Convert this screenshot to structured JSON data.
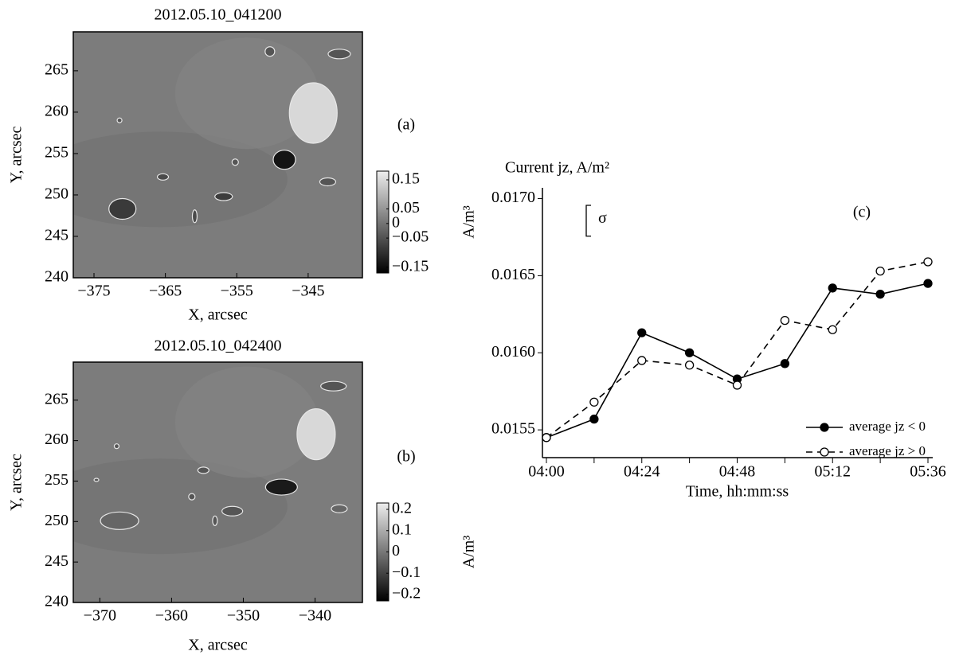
{
  "chart_data": [
    {
      "type": "image",
      "title": "2012.05.10_041200",
      "panel_label": "(a)",
      "x_label": "X, arcsec",
      "y_label": "Y, arcsec",
      "xlim": [
        -377.9,
        -337.4
      ],
      "xticks": [
        {
          "value": -375,
          "label": "−375"
        },
        {
          "value": -365,
          "label": "−365"
        },
        {
          "value": -355,
          "label": "−355"
        },
        {
          "value": -345,
          "label": "−345"
        }
      ],
      "ylim": [
        240,
        269.7
      ],
      "yticks": [
        240,
        245,
        250,
        255,
        260,
        265
      ],
      "colorbar_label": "A/m³",
      "clim": [
        -0.17,
        0.18
      ],
      "cticks": [
        0.15,
        0.05,
        0,
        {
          "value": -0.05,
          "label": "−0.05"
        },
        {
          "value": -0.15,
          "label": "−0.15"
        }
      ]
    },
    {
      "type": "image",
      "title": "2012.05.10_042400",
      "panel_label": "(b)",
      "x_label": "X, arcsec",
      "y_label": "Y, arcsec",
      "xlim": [
        -373.7,
        -333.4
      ],
      "xticks": [
        {
          "value": -370,
          "label": "−370"
        },
        {
          "value": -360,
          "label": "−360"
        },
        {
          "value": -350,
          "label": "−350"
        },
        {
          "value": -340,
          "label": "−340"
        }
      ],
      "ylim": [
        240,
        269.7
      ],
      "yticks": [
        240,
        245,
        250,
        255,
        260,
        265
      ],
      "colorbar_label": "A/m³",
      "clim": [
        -0.23,
        0.23
      ],
      "cticks": [
        0.2,
        0.1,
        0,
        {
          "value": -0.1,
          "label": "−0.1"
        },
        {
          "value": -0.2,
          "label": "−0.2"
        }
      ]
    },
    {
      "type": "line",
      "panel_label": "(c)",
      "y_label": "Current jz, A/m²",
      "x_label": "Time, hh:mm:ss",
      "categories": [
        "04:00",
        null,
        "04:24",
        null,
        "04:48",
        null,
        "05:12",
        null,
        "05:36"
      ],
      "ylim": [
        0.01532,
        0.01707
      ],
      "yticks": [
        0.0155,
        0.016,
        0.0165,
        0.017
      ],
      "yticks_labels": [
        "0.0155",
        "0.0160",
        "0.0165",
        "0.0170"
      ],
      "sigma_label": "σ",
      "sigma": 0.0002,
      "legend": "lower right",
      "series": [
        {
          "name": "average jz < 0",
          "color": "#000000",
          "line_style": "solid",
          "marker": "filled",
          "values": [
            0.01545,
            0.01557,
            0.01613,
            0.016,
            0.01583,
            0.01593,
            0.01642,
            0.01638,
            0.01645
          ]
        },
        {
          "name": "average jz > 0",
          "color": "#000000",
          "line_style": "dashed",
          "marker": "open",
          "values": [
            0.01545,
            0.01568,
            0.01595,
            0.01592,
            0.01579,
            0.01621,
            0.01615,
            0.01653,
            0.01659
          ]
        }
      ]
    }
  ]
}
